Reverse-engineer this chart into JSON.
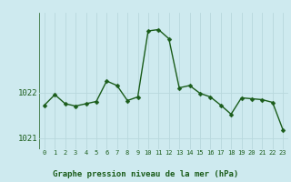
{
  "hours": [
    0,
    1,
    2,
    3,
    4,
    5,
    6,
    7,
    8,
    9,
    10,
    11,
    12,
    13,
    14,
    15,
    16,
    17,
    18,
    19,
    20,
    21,
    22,
    23
  ],
  "pressure": [
    1021.72,
    1021.95,
    1021.75,
    1021.7,
    1021.75,
    1021.8,
    1022.25,
    1022.15,
    1021.82,
    1021.9,
    1023.35,
    1023.38,
    1023.18,
    1022.1,
    1022.15,
    1021.98,
    1021.9,
    1021.72,
    1021.52,
    1021.88,
    1021.86,
    1021.84,
    1021.78,
    1021.18
  ],
  "line_color": "#1a5c1a",
  "marker": "D",
  "marker_size": 2.5,
  "bg_color": "#ceeaef",
  "grid_color": "#b8d8dd",
  "title": "Graphe pression niveau de la mer (hPa)",
  "yticks": [
    1021,
    1022
  ],
  "ylim": [
    1020.75,
    1023.75
  ],
  "xlim": [
    -0.5,
    23.5
  ]
}
